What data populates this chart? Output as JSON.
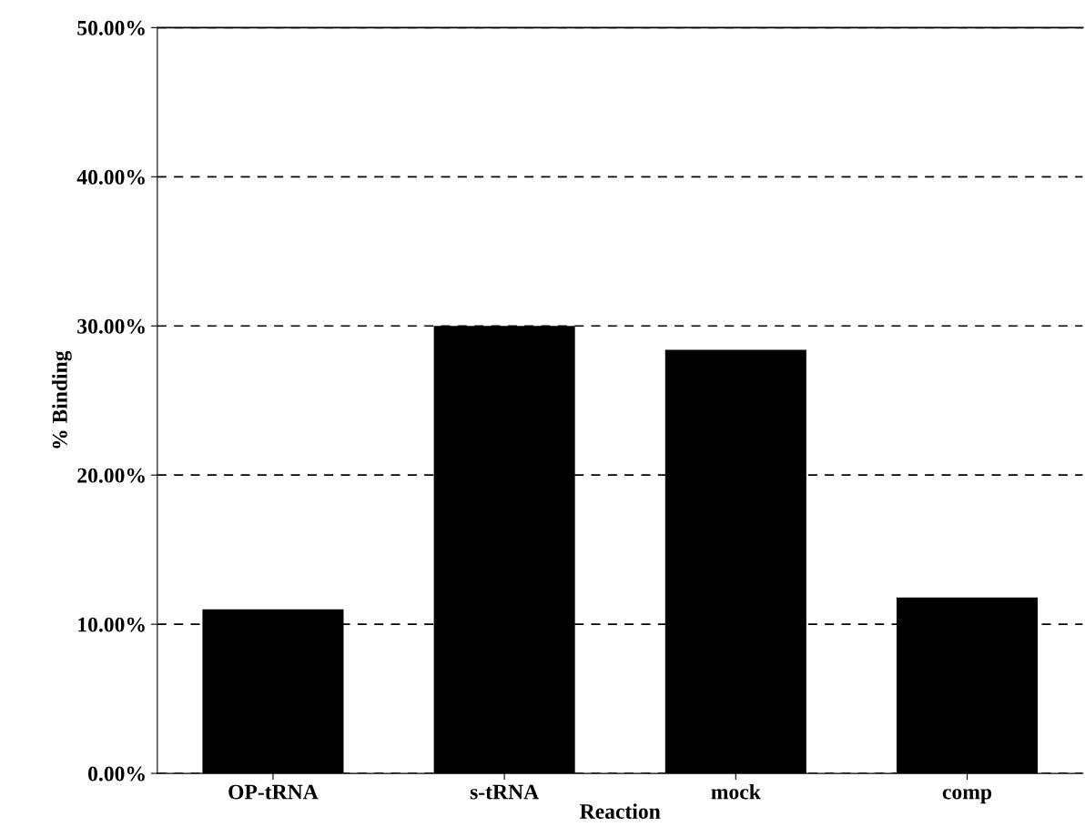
{
  "chart_data": {
    "type": "bar",
    "xlabel": "Reaction",
    "ylabel": "% Binding",
    "categories": [
      "OP-tRNA",
      "s-tRNA",
      "mock",
      "comp"
    ],
    "values": [
      11.0,
      30.0,
      28.4,
      11.8
    ],
    "color": "#000000",
    "ylim": [
      0,
      50
    ],
    "yticks": [
      {
        "value": 0,
        "label": "0.00%"
      },
      {
        "value": 10,
        "label": "10.00%"
      },
      {
        "value": 20,
        "label": "20.00%"
      },
      {
        "value": 30,
        "label": "30.00%"
      },
      {
        "value": 40,
        "label": "40.00%"
      },
      {
        "value": 50,
        "label": "50.00%"
      }
    ],
    "grid": "y",
    "legend": false
  }
}
